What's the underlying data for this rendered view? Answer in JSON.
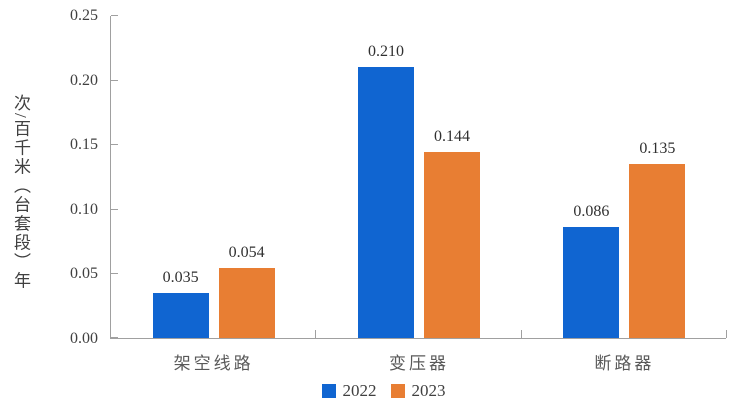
{
  "chart_data": {
    "type": "bar",
    "title": "",
    "categories": [
      "架空线路",
      "变压器",
      "断路器"
    ],
    "series": [
      {
        "name": "2022",
        "color": "#1065D1",
        "values": [
          0.035,
          0.21,
          0.086
        ]
      },
      {
        "name": "2023",
        "color": "#E87E33",
        "values": [
          0.054,
          0.144,
          0.135
        ]
      }
    ],
    "value_labels": [
      [
        "0.035",
        "0.210",
        "0.086"
      ],
      [
        "0.054",
        "0.144",
        "0.135"
      ]
    ],
    "xlabel": "",
    "ylabel": "次/百千米（台套段）年",
    "ylim": [
      0,
      0.25
    ],
    "ytick_step": 0.05,
    "ytick_labels": [
      "0.00",
      "0.05",
      "0.10",
      "0.15",
      "0.20",
      "0.25"
    ],
    "grid": false,
    "legend_position": "bottom"
  },
  "style": {
    "axis_color": "#A0A0A0",
    "tick_label_color": "#404040",
    "category_label_color": "#595959",
    "value_label_color": "#303030",
    "background": "#FFFFFF"
  }
}
